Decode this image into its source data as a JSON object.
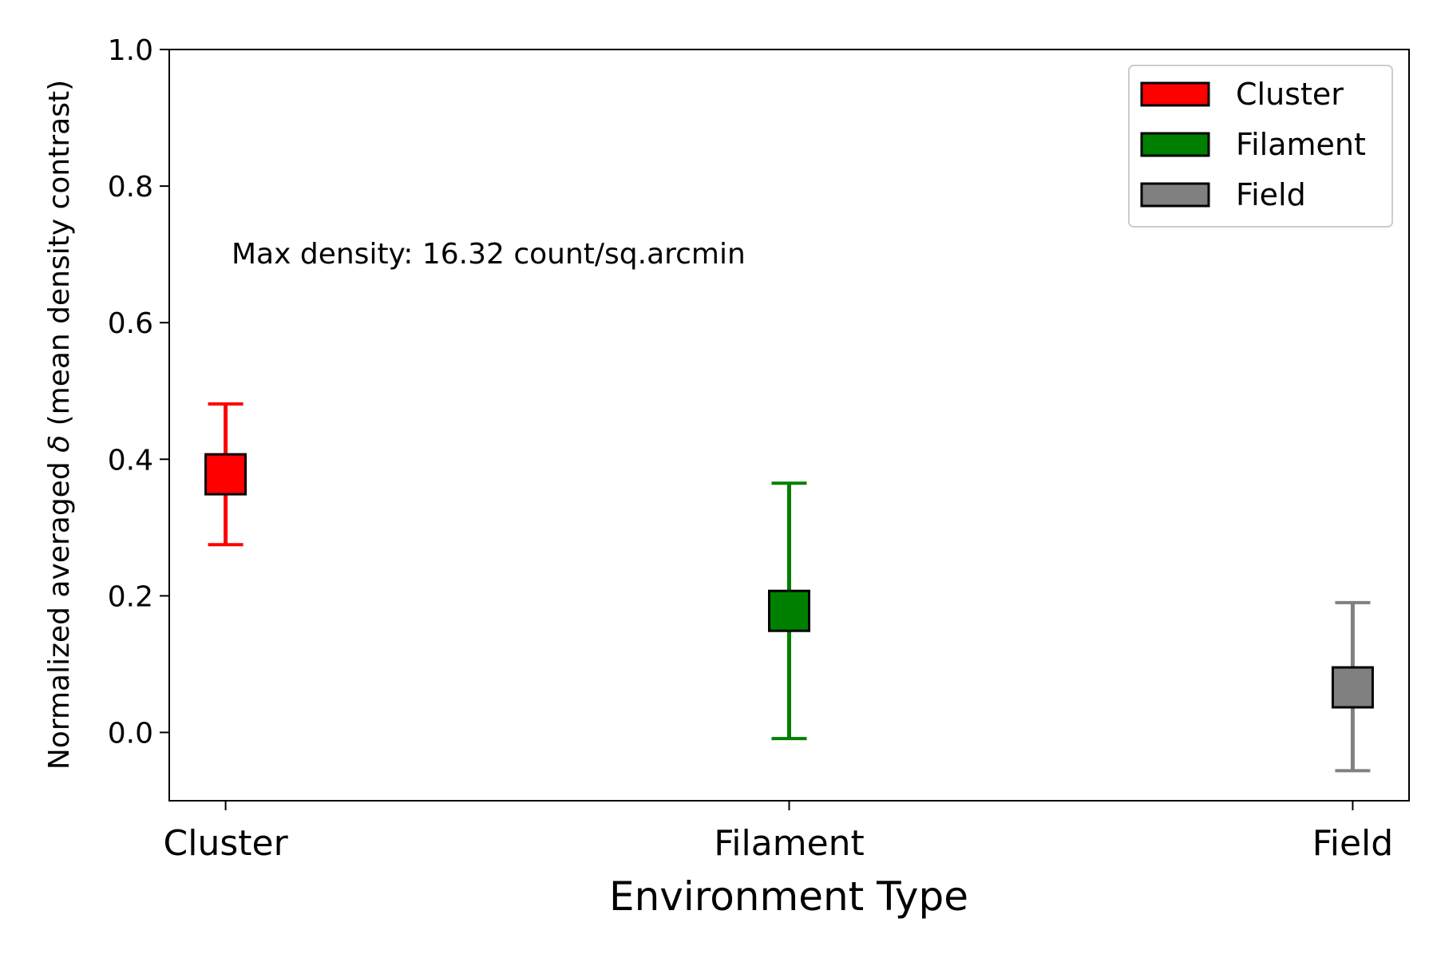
{
  "chart_data": {
    "type": "scatter",
    "title": "",
    "xlabel": "Environment Type",
    "ylabel": "Normalized averaged δ (mean density contrast)",
    "ylabel_parts": {
      "before": "Normalized averaged ",
      "symbol": "δ",
      "after": " (mean density contrast)"
    },
    "categories": [
      "Cluster",
      "Filament",
      "Field"
    ],
    "ylim": [
      -0.1,
      1.0
    ],
    "yticks": [
      "0.0",
      "0.2",
      "0.4",
      "0.6",
      "0.8",
      "1.0"
    ],
    "grid": false,
    "legend_position": "top-right",
    "annotation": "Max density: 16.32 count/sq.arcmin",
    "series": [
      {
        "name": "Cluster",
        "x": "Cluster",
        "value": 0.378,
        "err_low": 0.275,
        "err_high": 0.481,
        "color": "#ff0000"
      },
      {
        "name": "Filament",
        "x": "Filament",
        "value": 0.178,
        "err_low": -0.009,
        "err_high": 0.365,
        "color": "#008000"
      },
      {
        "name": "Field",
        "x": "Field",
        "value": 0.066,
        "err_low": -0.056,
        "err_high": 0.19,
        "color": "#808080"
      }
    ]
  }
}
